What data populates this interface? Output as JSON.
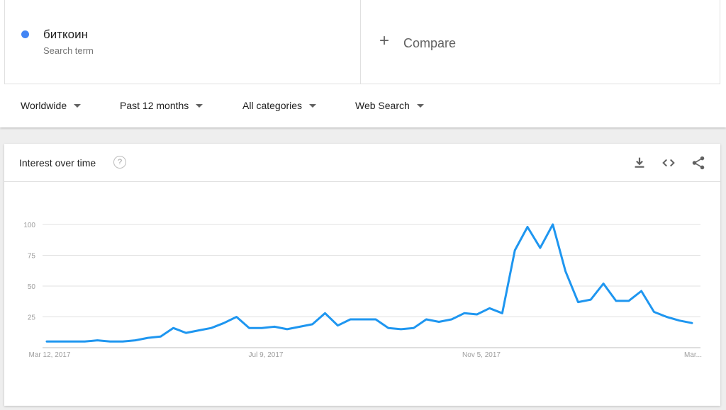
{
  "search_term": {
    "name": "биткоин",
    "sublabel": "Search term",
    "dot_color": "#4285f4"
  },
  "compare": {
    "plus": "+",
    "label": "Compare"
  },
  "filters": {
    "region": "Worldwide",
    "period": "Past 12 months",
    "category": "All categories",
    "property": "Web Search"
  },
  "card": {
    "title": "Interest over time",
    "help_icon": "help-icon",
    "actions": [
      "download-icon",
      "embed-code-icon",
      "share-icon"
    ]
  },
  "chart_data": {
    "type": "line",
    "title": "",
    "xlabel": "",
    "ylabel": "",
    "ylim": [
      0,
      100
    ],
    "y_ticks": [
      25,
      50,
      75,
      100
    ],
    "x_tick_labels": [
      "Mar 12, 2017",
      "Jul 9, 2017",
      "Nov 5, 2017",
      "Mar..."
    ],
    "line_color": "#1e96f0",
    "grid": true,
    "series": [
      {
        "values": [
          5,
          5,
          5,
          5,
          6,
          5,
          5,
          6,
          8,
          9,
          16,
          12,
          14,
          16,
          20,
          25,
          16,
          16,
          17,
          15,
          17,
          19,
          28,
          18,
          23,
          23,
          23,
          16,
          15,
          16,
          23,
          21,
          23,
          28,
          27,
          32,
          28,
          79,
          98,
          81,
          100,
          62,
          37,
          39,
          52,
          38,
          38,
          46,
          29,
          25,
          22,
          20
        ]
      }
    ]
  }
}
